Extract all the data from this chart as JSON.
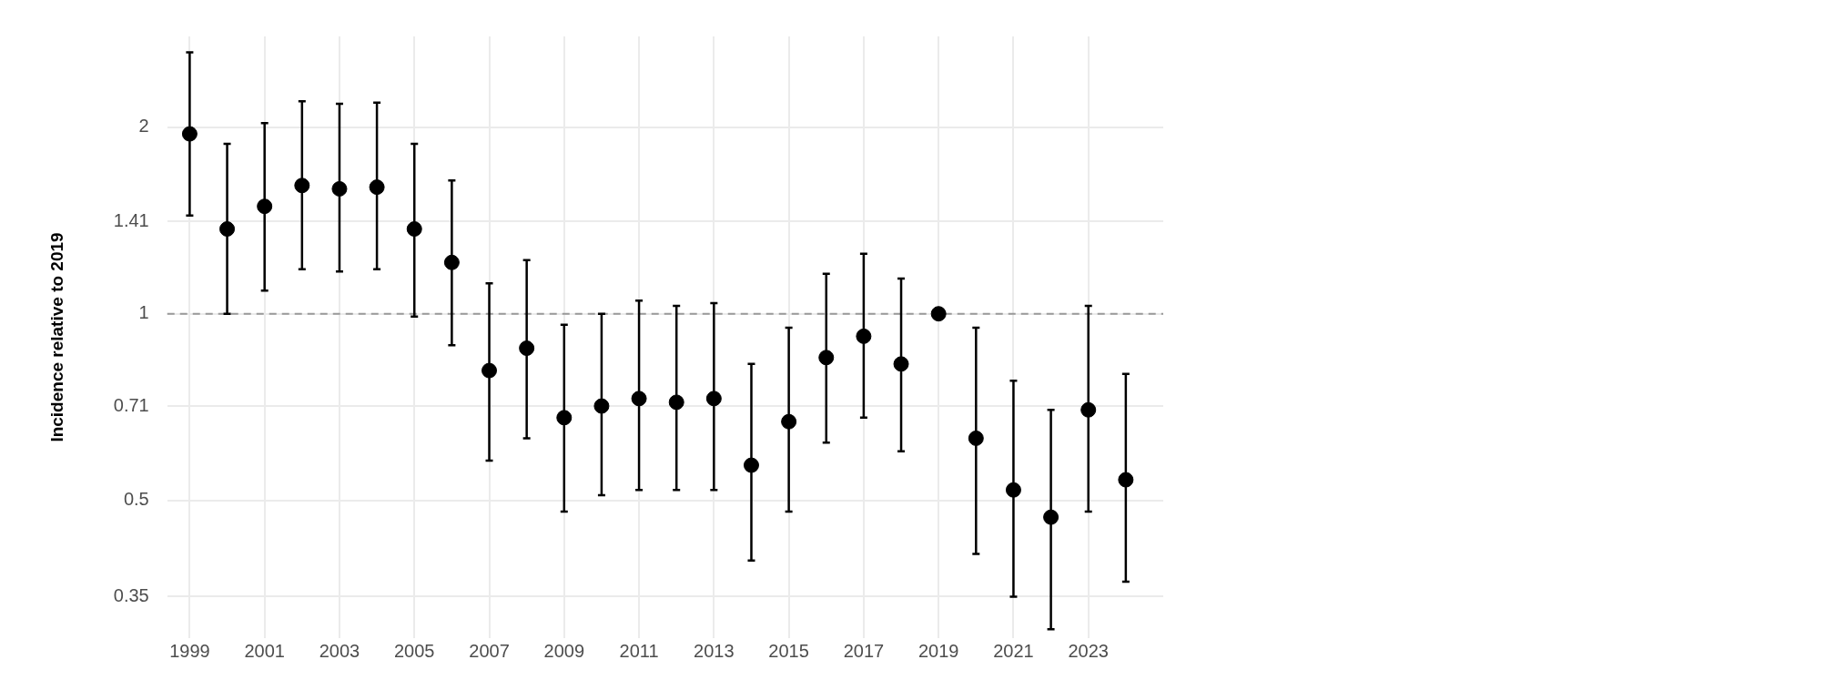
{
  "chart_data": {
    "type": "scatter",
    "ylabel": "Incidence relative to 2019",
    "log": "y",
    "grid": true,
    "marker": "circle",
    "legend": false,
    "x": [
      1999,
      2000,
      2001,
      2002,
      2003,
      2004,
      2005,
      2006,
      2007,
      2008,
      2009,
      2010,
      2011,
      2012,
      2013,
      2014,
      2015,
      2016,
      2017,
      2018,
      2019,
      2020,
      2021,
      2022,
      2023,
      2024
    ],
    "series": [
      {
        "color": "#000000",
        "values": [
          1.95,
          1.37,
          1.49,
          1.61,
          1.59,
          1.6,
          1.37,
          1.21,
          0.81,
          0.88,
          0.68,
          0.71,
          0.73,
          0.72,
          0.73,
          0.57,
          0.67,
          0.85,
          0.92,
          0.83,
          1,
          0.63,
          0.52,
          0.47,
          0.7,
          0.54
        ],
        "errors": [
          [
            1.44,
            2.64
          ],
          [
            1.0,
            1.88
          ],
          [
            1.09,
            2.03
          ],
          [
            1.18,
            2.2
          ],
          [
            1.17,
            2.18
          ],
          [
            1.18,
            2.19
          ],
          [
            0.99,
            1.88
          ],
          [
            0.89,
            1.64
          ],
          [
            0.58,
            1.12
          ],
          [
            0.63,
            1.22
          ],
          [
            0.48,
            0.96
          ],
          [
            0.51,
            1.0
          ],
          [
            0.52,
            1.05
          ],
          [
            0.52,
            1.03
          ],
          [
            0.52,
            1.04
          ],
          [
            0.4,
            0.83
          ],
          [
            0.48,
            0.95
          ],
          [
            0.62,
            1.16
          ],
          [
            0.68,
            1.25
          ],
          [
            0.6,
            1.14
          ],
          null,
          [
            0.41,
            0.95
          ],
          [
            0.35,
            0.78
          ],
          [
            0.31,
            0.7
          ],
          [
            0.48,
            1.03
          ],
          [
            0.37,
            0.8
          ]
        ]
      }
    ],
    "xlim": [
      1998.4,
      2025
    ],
    "xticks": [
      1999,
      2001,
      2003,
      2005,
      2007,
      2009,
      2011,
      2013,
      2015,
      2017,
      2019,
      2021,
      2023
    ],
    "ylim": [
      0.3,
      2.8
    ],
    "yticks": [
      0.35,
      0.5,
      0.71,
      1,
      1.41,
      2
    ],
    "ref_lines": [
      {
        "axis": "y",
        "value": 1,
        "color": "#999999",
        "line_style": "dashed"
      }
    ]
  }
}
